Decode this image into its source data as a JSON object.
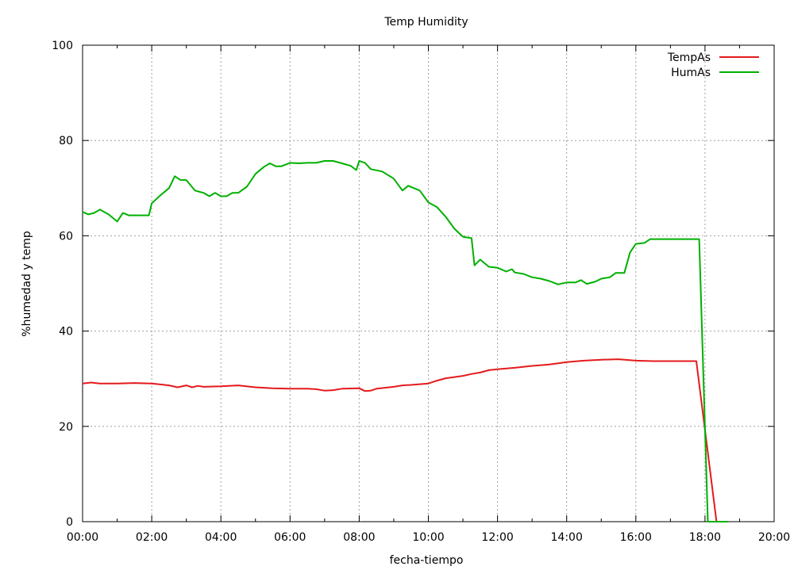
{
  "chart_data": {
    "type": "line",
    "title": "Temp Humidity",
    "xlabel": "fecha-tiempo",
    "ylabel": "%humedad y temp",
    "xlim": [
      "00:00",
      "20:00"
    ],
    "ylim": [
      0,
      100
    ],
    "grid": true,
    "legend": "top-right",
    "x_ticks": [
      "00:00",
      "02:00",
      "04:00",
      "06:00",
      "08:00",
      "10:00",
      "12:00",
      "14:00",
      "16:00",
      "18:00",
      "20:00"
    ],
    "y_ticks": [
      "0",
      "20",
      "40",
      "60",
      "80",
      "100"
    ],
    "series": [
      {
        "name": "TempAs",
        "color": "#e41a1c",
        "points": [
          [
            "00:00",
            29.0
          ],
          [
            "00:15",
            29.2
          ],
          [
            "00:30",
            29.0
          ],
          [
            "00:45",
            29.0
          ],
          [
            "01:00",
            29.0
          ],
          [
            "01:30",
            29.1
          ],
          [
            "02:00",
            29.0
          ],
          [
            "02:15",
            28.8
          ],
          [
            "02:30",
            28.6
          ],
          [
            "02:45",
            28.2
          ],
          [
            "03:00",
            28.6
          ],
          [
            "03:10",
            28.2
          ],
          [
            "03:20",
            28.5
          ],
          [
            "03:30",
            28.3
          ],
          [
            "04:00",
            28.4
          ],
          [
            "04:30",
            28.6
          ],
          [
            "05:00",
            28.2
          ],
          [
            "05:30",
            28.0
          ],
          [
            "06:00",
            27.9
          ],
          [
            "06:30",
            27.9
          ],
          [
            "06:45",
            27.8
          ],
          [
            "07:00",
            27.5
          ],
          [
            "07:15",
            27.6
          ],
          [
            "07:30",
            27.9
          ],
          [
            "08:00",
            28.0
          ],
          [
            "08:10",
            27.4
          ],
          [
            "08:20",
            27.5
          ],
          [
            "08:30",
            27.9
          ],
          [
            "09:00",
            28.3
          ],
          [
            "09:15",
            28.6
          ],
          [
            "09:30",
            28.7
          ],
          [
            "10:00",
            29.0
          ],
          [
            "10:15",
            29.6
          ],
          [
            "10:30",
            30.1
          ],
          [
            "11:00",
            30.6
          ],
          [
            "11:15",
            31.0
          ],
          [
            "11:30",
            31.3
          ],
          [
            "11:45",
            31.8
          ],
          [
            "12:00",
            32.0
          ],
          [
            "12:30",
            32.3
          ],
          [
            "13:00",
            32.7
          ],
          [
            "13:30",
            33.0
          ],
          [
            "14:00",
            33.5
          ],
          [
            "14:30",
            33.8
          ],
          [
            "15:00",
            34.0
          ],
          [
            "15:30",
            34.1
          ],
          [
            "16:00",
            33.8
          ],
          [
            "16:30",
            33.7
          ],
          [
            "17:00",
            33.7
          ],
          [
            "17:45",
            33.7
          ],
          [
            "18:20",
            0.0
          ]
        ]
      },
      {
        "name": "HumAs",
        "color": "#00b000",
        "points": [
          [
            "00:00",
            65.0
          ],
          [
            "00:10",
            64.5
          ],
          [
            "00:20",
            64.8
          ],
          [
            "00:30",
            65.5
          ],
          [
            "00:45",
            64.5
          ],
          [
            "01:00",
            63.0
          ],
          [
            "01:10",
            64.8
          ],
          [
            "01:20",
            64.3
          ],
          [
            "01:30",
            64.3
          ],
          [
            "01:55",
            64.3
          ],
          [
            "02:00",
            66.8
          ],
          [
            "02:15",
            68.5
          ],
          [
            "02:30",
            70.0
          ],
          [
            "02:40",
            72.5
          ],
          [
            "02:50",
            71.7
          ],
          [
            "03:00",
            71.7
          ],
          [
            "03:15",
            69.5
          ],
          [
            "03:30",
            69.0
          ],
          [
            "03:40",
            68.3
          ],
          [
            "03:50",
            69.0
          ],
          [
            "04:00",
            68.3
          ],
          [
            "04:10",
            68.3
          ],
          [
            "04:20",
            69.0
          ],
          [
            "04:30",
            69.0
          ],
          [
            "04:45",
            70.3
          ],
          [
            "05:00",
            73.0
          ],
          [
            "05:15",
            74.5
          ],
          [
            "05:25",
            75.2
          ],
          [
            "05:35",
            74.6
          ],
          [
            "05:45",
            74.6
          ],
          [
            "06:00",
            75.3
          ],
          [
            "06:15",
            75.2
          ],
          [
            "06:30",
            75.3
          ],
          [
            "06:45",
            75.3
          ],
          [
            "07:00",
            75.7
          ],
          [
            "07:15",
            75.7
          ],
          [
            "07:30",
            75.2
          ],
          [
            "07:45",
            74.7
          ],
          [
            "07:55",
            73.8
          ],
          [
            "08:00",
            75.7
          ],
          [
            "08:10",
            75.3
          ],
          [
            "08:20",
            74.0
          ],
          [
            "08:40",
            73.5
          ],
          [
            "09:00",
            72.0
          ],
          [
            "09:15",
            69.5
          ],
          [
            "09:25",
            70.5
          ],
          [
            "09:45",
            69.5
          ],
          [
            "10:00",
            67.0
          ],
          [
            "10:15",
            66.0
          ],
          [
            "10:30",
            64.0
          ],
          [
            "10:45",
            61.5
          ],
          [
            "11:00",
            59.8
          ],
          [
            "11:15",
            59.5
          ],
          [
            "11:20",
            53.8
          ],
          [
            "11:30",
            55.0
          ],
          [
            "11:45",
            53.5
          ],
          [
            "12:00",
            53.3
          ],
          [
            "12:15",
            52.5
          ],
          [
            "12:25",
            53.0
          ],
          [
            "12:30",
            52.3
          ],
          [
            "12:45",
            52.0
          ],
          [
            "13:00",
            51.3
          ],
          [
            "13:15",
            51.0
          ],
          [
            "13:30",
            50.5
          ],
          [
            "13:45",
            49.8
          ],
          [
            "14:00",
            50.2
          ],
          [
            "14:15",
            50.2
          ],
          [
            "14:25",
            50.7
          ],
          [
            "14:35",
            49.9
          ],
          [
            "14:50",
            50.4
          ],
          [
            "15:00",
            51.0
          ],
          [
            "15:15",
            51.3
          ],
          [
            "15:25",
            52.2
          ],
          [
            "15:40",
            52.2
          ],
          [
            "15:50",
            56.5
          ],
          [
            "16:00",
            58.3
          ],
          [
            "16:15",
            58.5
          ],
          [
            "16:25",
            59.3
          ],
          [
            "17:00",
            59.3
          ],
          [
            "17:30",
            59.3
          ],
          [
            "17:50",
            59.3
          ],
          [
            "18:05",
            0.0
          ],
          [
            "18:40",
            0.0
          ]
        ]
      }
    ]
  }
}
